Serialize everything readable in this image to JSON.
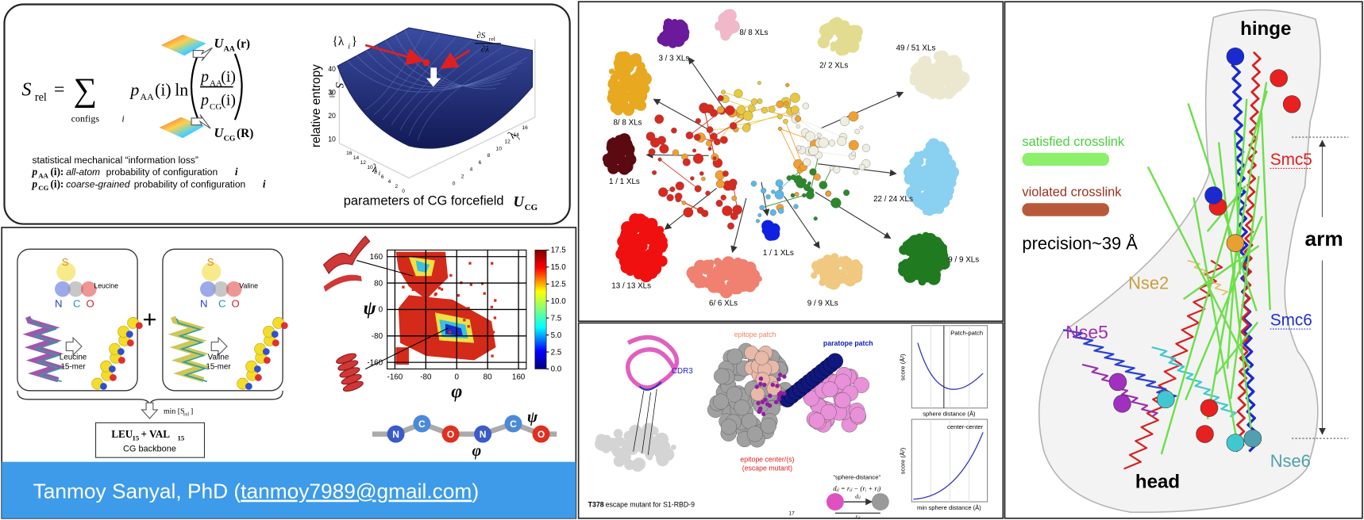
{
  "panel_a": {
    "formula": [
      "S",
      "rel",
      "=",
      "∑",
      "configs",
      "i",
      "p",
      "AA",
      "(i)",
      "ln",
      "p",
      "AA",
      "(i)",
      "p",
      "CG",
      "(i)"
    ],
    "u_aa": [
      "U",
      "AA",
      "(r)"
    ],
    "u_cg": [
      "U",
      "CG",
      "(R)"
    ],
    "note": "statistical mechanical “information loss”",
    "p_aa": [
      "p",
      "AA",
      "(i):",
      "all-atom",
      "probability of configuration",
      "i"
    ],
    "p_cg": [
      "p",
      "CG",
      "(i):",
      "coarse-grained",
      "probability of configuration",
      "i"
    ],
    "lambda_set": [
      "{λ",
      "i",
      "}"
    ],
    "gradient": [
      "∂S",
      "rel",
      "∂λ"
    ],
    "z_label": "relative entropy",
    "z_symbol": [
      "S",
      "rel"
    ],
    "z_ticks": [
      10,
      20,
      30,
      40
    ],
    "x_label": [
      "λ",
      "i"
    ],
    "y_label": [
      "λ",
      "j"
    ],
    "x_ticks": [
      16,
      14,
      12,
      10,
      8,
      6,
      4,
      2,
      0
    ],
    "y_ticks": [
      0,
      2,
      4,
      6,
      8,
      10,
      12,
      14,
      16
    ],
    "caption": [
      "parameters of CG forcefield",
      "U",
      "CG"
    ]
  },
  "panel_b": {
    "leucine": {
      "atoms": [
        "S",
        "N",
        "C",
        "O"
      ],
      "name": "Leucine",
      "chain": [
        "Leucine",
        "15-mer"
      ]
    },
    "valine": {
      "atoms": [
        "S",
        "N",
        "C",
        "O"
      ],
      "name": "Valine",
      "chain": [
        "Valine",
        "15-mer"
      ]
    },
    "plus": "+",
    "min": [
      "min [S",
      "rel",
      "]"
    ],
    "cg_box": [
      "LEU",
      "15",
      " + VAL",
      "15"
    ],
    "cg_label": "CG backbone",
    "rama": {
      "y_label": "ψ",
      "x_label": "φ",
      "yticks": [
        160,
        80,
        0,
        -80,
        -160
      ],
      "xticks": [
        -160,
        -80,
        0,
        80,
        160
      ],
      "cbar_ticks": [
        {
          "value": 17.5,
          "label": "17.5"
        },
        {
          "value": 15,
          "label": "15.0"
        },
        {
          "value": 12.5,
          "label": "12.5"
        },
        {
          "value": 10,
          "label": "10.0"
        },
        {
          "value": 7.5,
          "label": "7.5"
        },
        {
          "value": 5,
          "label": "5.0"
        },
        {
          "value": 2.5,
          "label": "2.5"
        },
        {
          "value": 0,
          "label": "0.0"
        }
      ]
    },
    "chain": {
      "atoms": [
        "N",
        "C",
        "O",
        "N",
        "C",
        "O"
      ],
      "phi": "φ",
      "psi": "ψ"
    },
    "footer": {
      "name": "Tanmoy Sanyal, PhD (",
      "email": "tanmoy7989@gmail.com",
      "close": ")"
    }
  },
  "panel_c": {
    "labels": [
      "3 / 3 XLs",
      "8/ 8 XLs",
      "2/ 2 XLs",
      "49 / 51 XLs",
      "8/ 8 XLs",
      "1 / 1 XLs",
      "22 / 24 XLs",
      "1 / 1 XLs",
      "13 / 13 XLs",
      "6/ 6 XLs",
      "9 / 9 XLs",
      "9 / 9 XLs"
    ]
  },
  "panel_d": {
    "cdr3": "CDR3",
    "mutant": [
      "T378",
      " escape mutant for S1-RBD-9"
    ],
    "epitope_patch": "epitope patch",
    "paratope_patch": "paratope patch",
    "epitope_center": [
      "epitope center/(s)",
      "(escape mutant)"
    ],
    "sphere_distance": "“sphere-distance”",
    "distance_formula": "dᵢⱼ = rᵢⱼ − (rᵢ + rⱼ)",
    "d_ij": "dᵢⱼ",
    "r_ij": "rᵢⱼ",
    "page": "17",
    "plot_top": {
      "title": "Patch-patch",
      "y_label": "score (Å²)",
      "x_label": "sphere distance (Å)"
    },
    "plot_bottom": {
      "title": "center-center",
      "y_label": "score (Å²)",
      "x_label": "min sphere distance (Å)"
    }
  },
  "panel_e": {
    "hinge": "hinge",
    "satisfied": "satisfied crosslink",
    "violated": "violated crosslink",
    "precision": "precision~39 Å",
    "smc5": "Smc5",
    "arm": "arm",
    "nse2": "Nse2",
    "smc6": "Smc6",
    "nse5": "Nse5",
    "head": "head",
    "nse6": "Nse6"
  }
}
